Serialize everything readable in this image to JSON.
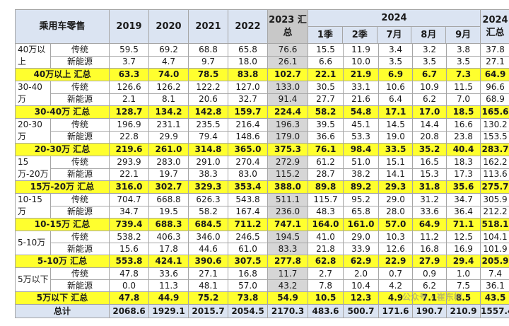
{
  "header": {
    "category": "乘用车零售",
    "years": [
      "2019",
      "2020",
      "2021",
      "2022"
    ],
    "total_2023": "2023 汇总",
    "y2024": "2024",
    "sub_2024": [
      "1季",
      "2季",
      "7月",
      "8月",
      "9月"
    ],
    "total_2024": "2024 汇总"
  },
  "groups": [
    {
      "label": "40万以上",
      "rows": [
        {
          "type": "传统",
          "values": [
            "59.5",
            "69.2",
            "68.8",
            "65.8",
            "76.6",
            "15.5",
            "11.9",
            "3.4",
            "3.2",
            "3.8",
            "37.8"
          ]
        },
        {
          "type": "新能源",
          "values": [
            "3.7",
            "4.7",
            "9.7",
            "18.0",
            "26.1",
            "6.6",
            "10.0",
            "3.5",
            "3.5",
            "3.5",
            "27.1"
          ]
        }
      ],
      "subtotal_label": "40万以上 汇总",
      "subtotal": [
        "63.3",
        "74.0",
        "78.5",
        "83.8",
        "102.7",
        "22.1",
        "21.9",
        "6.9",
        "6.7",
        "7.3",
        "64.9"
      ]
    },
    {
      "label": "30-40万",
      "rows": [
        {
          "type": "传统",
          "values": [
            "126.6",
            "126.2",
            "122.2",
            "127.0",
            "133.0",
            "30.5",
            "33.1",
            "10.6",
            "10.9",
            "11.5",
            "96.6"
          ]
        },
        {
          "type": "新能源",
          "values": [
            "2.1",
            "8.1",
            "20.6",
            "32.7",
            "91.4",
            "27.7",
            "21.6",
            "6.4",
            "6.2",
            "7.0",
            "68.9"
          ]
        }
      ],
      "subtotal_label": "30-40万 汇总",
      "subtotal": [
        "128.7",
        "134.2",
        "142.8",
        "159.7",
        "224.4",
        "58.2",
        "54.8",
        "17.1",
        "17.0",
        "18.5",
        "165.6"
      ]
    },
    {
      "label": "20-30万",
      "rows": [
        {
          "type": "传统",
          "values": [
            "196.9",
            "231.1",
            "235.5",
            "216.4",
            "196.3",
            "39.5",
            "45.1",
            "14.5",
            "14.4",
            "16.6",
            "130.2"
          ]
        },
        {
          "type": "新能源",
          "values": [
            "22.8",
            "29.9",
            "79.4",
            "148.6",
            "179.0",
            "36.6",
            "53.3",
            "19.0",
            "20.8",
            "23.8",
            "153.5"
          ]
        }
      ],
      "subtotal_label": "20-30万 汇总",
      "subtotal": [
        "219.6",
        "261.0",
        "314.8",
        "365.0",
        "375.3",
        "76.1",
        "98.4",
        "33.5",
        "35.2",
        "40.4",
        "283.7"
      ]
    },
    {
      "label": "15万-20万",
      "rows": [
        {
          "type": "传统",
          "values": [
            "293.9",
            "283.0",
            "291.0",
            "270.4",
            "272.9",
            "61.2",
            "51.0",
            "15.1",
            "16.5",
            "18.3",
            "162.2"
          ]
        },
        {
          "type": "新能源",
          "values": [
            "22.1",
            "19.7",
            "38.3",
            "83.0",
            "115.2",
            "28.7",
            "38.2",
            "14.1",
            "15.3",
            "17.3",
            "113.6"
          ]
        }
      ],
      "subtotal_label": "15万-20万 汇总",
      "subtotal": [
        "316.0",
        "302.7",
        "329.3",
        "353.4",
        "388.0",
        "89.8",
        "89.2",
        "29.3",
        "31.8",
        "35.6",
        "275.7"
      ]
    },
    {
      "label": "10-15万",
      "rows": [
        {
          "type": "传统",
          "values": [
            "704.7",
            "668.8",
            "626.3",
            "543.8",
            "511.1",
            "115.7",
            "95.2",
            "29.0",
            "31.2",
            "34.7",
            "305.9"
          ]
        },
        {
          "type": "新能源",
          "values": [
            "34.7",
            "19.5",
            "58.2",
            "167.4",
            "236.0",
            "48.3",
            "65.8",
            "28.0",
            "33.6",
            "36.4",
            "212.2"
          ]
        }
      ],
      "subtotal_label": "10-15万 汇总",
      "subtotal": [
        "739.4",
        "688.3",
        "684.5",
        "711.2",
        "747.1",
        "164.0",
        "161.0",
        "57.0",
        "64.9",
        "71.1",
        "518.1"
      ]
    },
    {
      "label": "5-10万",
      "rows": [
        {
          "type": "传统",
          "values": [
            "538.2",
            "406.3",
            "346.0",
            "246.5",
            "194.5",
            "41.0",
            "29.0",
            "10.3",
            "11.2",
            "12.5",
            "104.1"
          ]
        },
        {
          "type": "新能源",
          "values": [
            "15.6",
            "17.8",
            "44.6",
            "61.0",
            "83.3",
            "21.8",
            "33.9",
            "12.6",
            "16.8",
            "16.9",
            "101.9"
          ]
        }
      ],
      "subtotal_label": "5-10万 汇总",
      "subtotal": [
        "553.8",
        "424.1",
        "390.6",
        "307.5",
        "277.8",
        "62.8",
        "62.9",
        "22.9",
        "27.9",
        "29.4",
        "205.9"
      ]
    },
    {
      "label": "5万以下",
      "rows": [
        {
          "type": "传统",
          "values": [
            "47.8",
            "33.6",
            "27.1",
            "16.8",
            "11.7",
            "2.7",
            "2.0",
            "0.7",
            "0.9",
            "1.0",
            "7.4"
          ]
        },
        {
          "type": "新能源",
          "values": [
            "0.0",
            "11.3",
            "48.1",
            "57.0",
            "43.2",
            "7.8",
            "10.4",
            "4.2",
            "6.2",
            "7.5",
            "36.1"
          ]
        }
      ],
      "subtotal_label": "5万以下 汇总",
      "subtotal": [
        "47.8",
        "44.9",
        "75.2",
        "73.8",
        "54.9",
        "10.5",
        "12.3",
        "4.9",
        "7.1",
        "8.5",
        "43.5"
      ]
    }
  ],
  "total_label": "总计",
  "total": [
    "2068.6",
    "1929.1",
    "2015.7",
    "2054.5",
    "2170.3",
    "483.6",
    "500.7",
    "171.6",
    "190.7",
    "210.9",
    "1557.4"
  ],
  "watermark": "公众号 · 崔东树",
  "colors": {
    "header_bg": "#dbe4f2",
    "subtotal_bg": "#ffff2e",
    "gray_col_bg": "#d6d6d6",
    "border": "#a6a6a6"
  }
}
